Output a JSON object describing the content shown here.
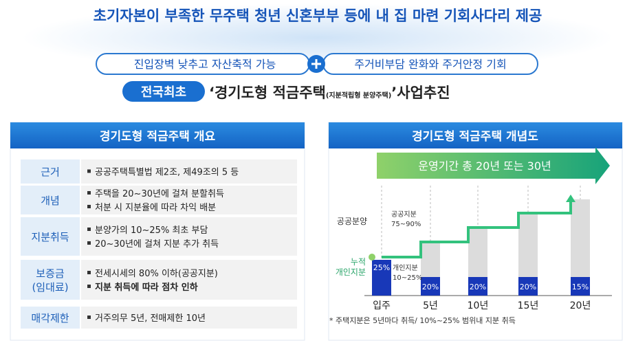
{
  "header": {
    "title": "초기자본이 부족한 무주택 청년 신혼부부 등에 내 집 마련 기회사다리 제공",
    "pill_left": "진입장벽 낮추고 자산축적 가능",
    "pill_right": "주거비부담 완화와 주거안정 기회",
    "badge": "전국최초",
    "headline": "‘경기도형 적금주택",
    "headline_note": "(지분적립형 분양주택)",
    "headline_end": "’사업추진"
  },
  "overview": {
    "title": "경기도형 적금주택 개요",
    "rows": [
      {
        "label": "근거",
        "items": [
          "공공주택특별법 제2조, 제49조의 5 등"
        ]
      },
      {
        "label": "개념",
        "items": [
          "주택을 20~30년에 걸쳐 분할취득",
          "처분 시 지분율에 따라 차익 배분"
        ]
      },
      {
        "label": "지분취득",
        "items": [
          "분양가의 10~25% 최초 부담",
          "20~30년에 걸쳐 지분 추가 취득"
        ]
      },
      {
        "label": "보증금\n(임대료)",
        "items": [
          "전세시세의 80% 이하(공공지분)",
          "지분 취득에 따라 점차 인하"
        ]
      },
      {
        "label": "매각제한",
        "items": [
          "거주의무 5년, 전매제한 10년"
        ]
      }
    ]
  },
  "concept": {
    "title": "경기도형 적금주택 개념도",
    "arrow": "운영기간 총 20년 또는 30년",
    "public_label": "공공분양",
    "public_share": "공공지분\n75~90%",
    "cumulative_label": "누적\n개인지분",
    "private_share": "개인지분\n10~25%",
    "periods": [
      "입주",
      "5년",
      "10년",
      "15년",
      "20년"
    ],
    "shares": [
      "25%",
      "20%",
      "20%",
      "20%",
      "15%"
    ],
    "footnote": "* 주택지분은 5년마다 취득/ 10%~25% 범위내 지분 취득"
  }
}
